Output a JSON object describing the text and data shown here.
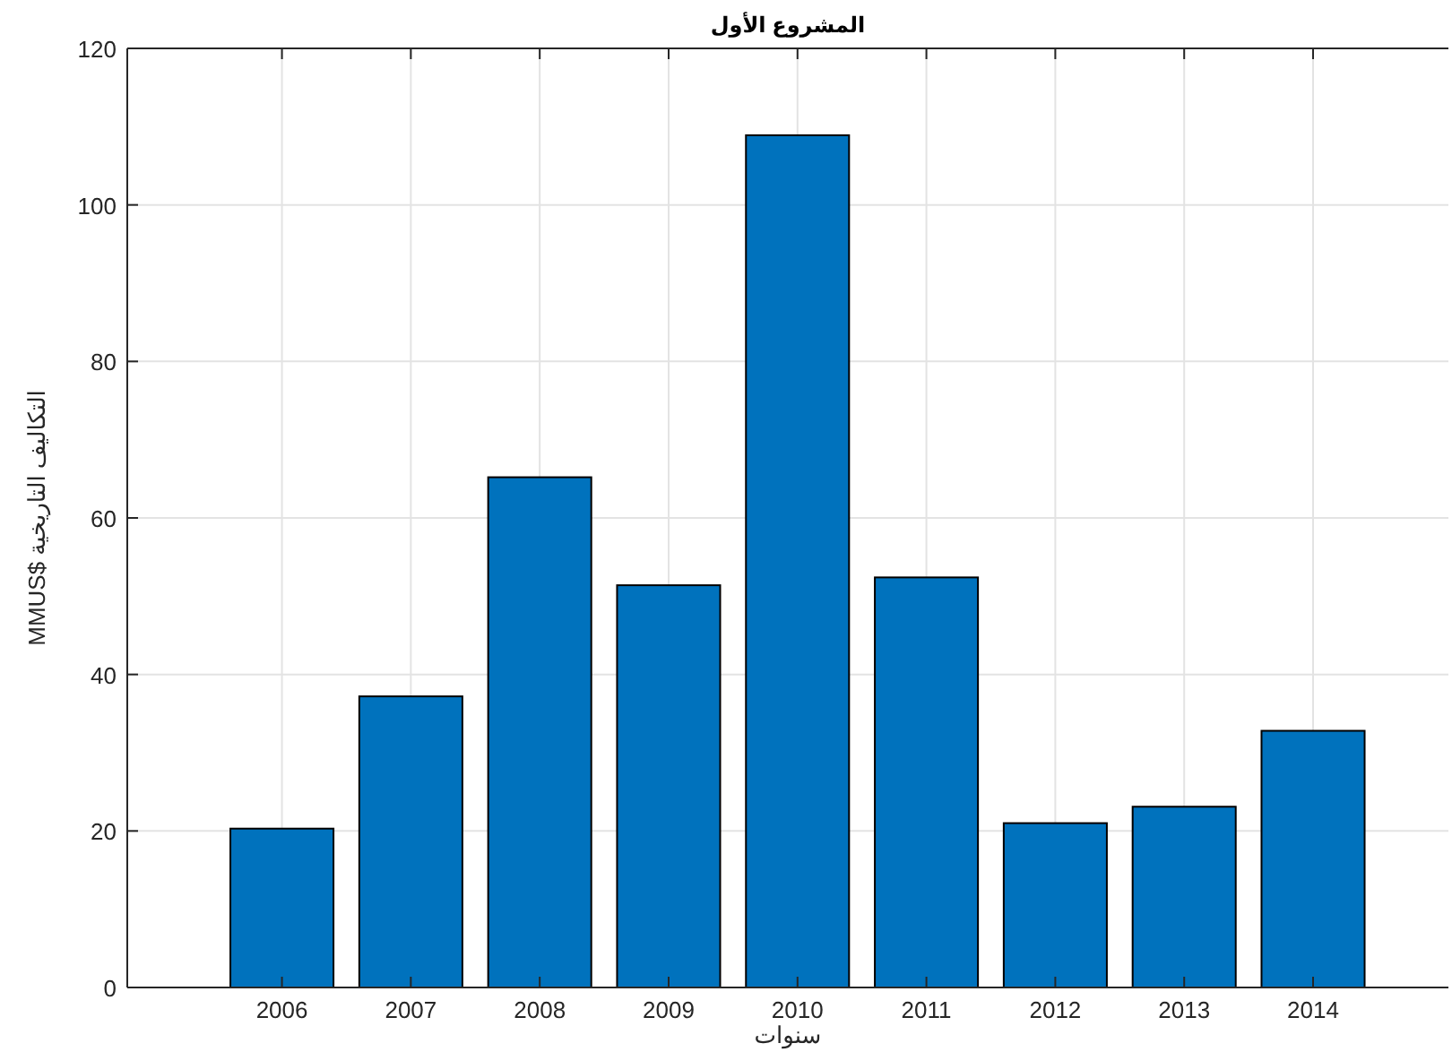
{
  "chart_data": {
    "type": "bar",
    "title": "المشروع الأول",
    "xlabel": "سنوات",
    "ylabel": "التكاليف التاريخية $MMUS",
    "x": [
      2006,
      2007,
      2008,
      2009,
      2010,
      2011,
      2012,
      2013,
      2014
    ],
    "values": [
      20.3,
      37.2,
      65.2,
      51.4,
      108.9,
      52.4,
      21.0,
      23.1,
      32.8
    ],
    "color": "#0072bd",
    "xlim": [
      2004.8,
      2015.05
    ],
    "xticks": [
      2006,
      2007,
      2008,
      2009,
      2010,
      2011,
      2012,
      2013,
      2014
    ],
    "ylim": [
      0,
      120
    ],
    "yticks": [
      0,
      20,
      40,
      60,
      80,
      100,
      120
    ],
    "grid": true
  }
}
